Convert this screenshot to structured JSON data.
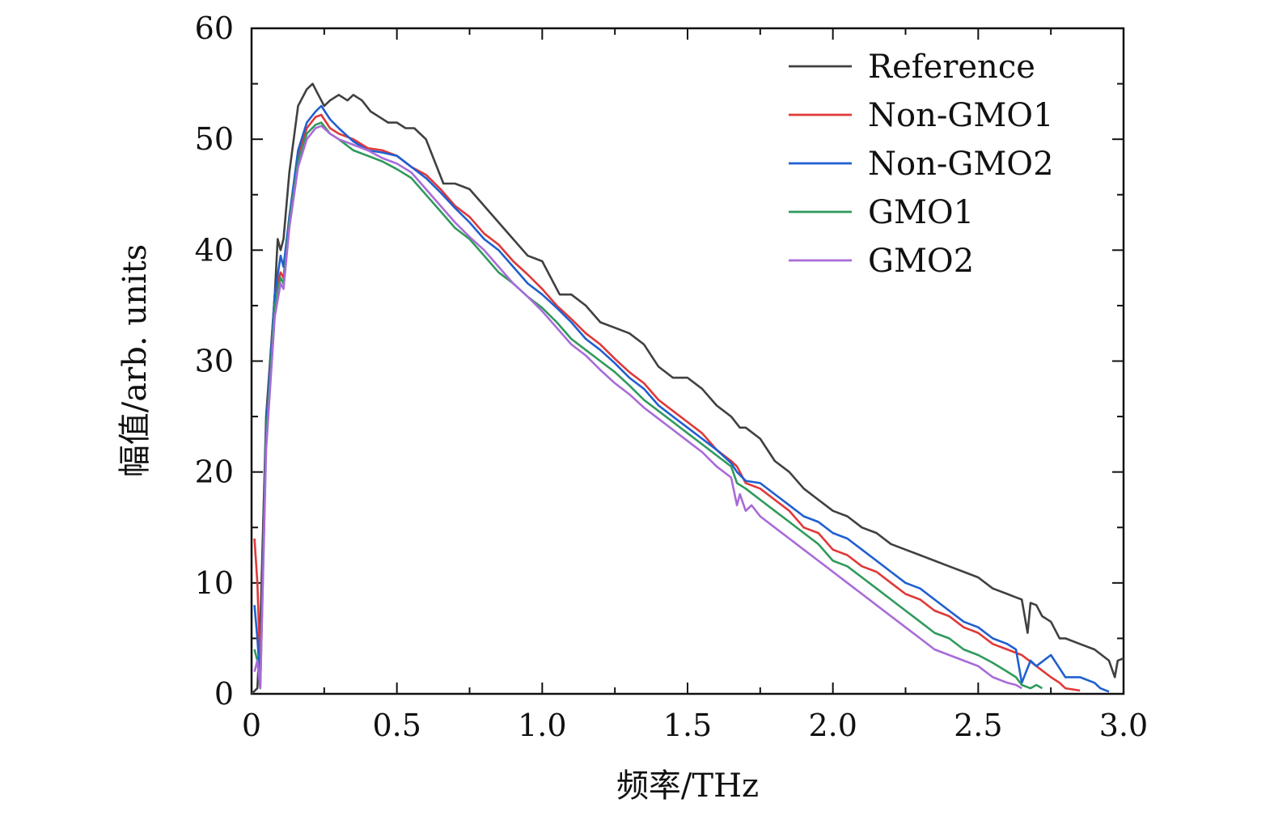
{
  "chart_data": {
    "type": "line",
    "title": "",
    "xlabel": "频率/THz",
    "ylabel": "幅值/arb. units",
    "xlim": [
      0,
      3.0
    ],
    "ylim": [
      0,
      60
    ],
    "xticks": [
      0,
      0.5,
      1.0,
      1.5,
      2.0,
      2.5,
      3.0
    ],
    "xtick_labels": [
      "0",
      "0.5",
      "1.0",
      "1.5",
      "2.0",
      "2.5",
      "3.0"
    ],
    "yticks": [
      0,
      10,
      20,
      30,
      40,
      50,
      60
    ],
    "ytick_labels": [
      "0",
      "10",
      "20",
      "30",
      "40",
      "50",
      "60"
    ],
    "grid": false,
    "legend_position": "top-right",
    "series": [
      {
        "name": "Reference",
        "color": "#404040",
        "x": [
          0.0,
          0.02,
          0.03,
          0.05,
          0.08,
          0.09,
          0.1,
          0.11,
          0.13,
          0.16,
          0.19,
          0.21,
          0.23,
          0.25,
          0.27,
          0.3,
          0.33,
          0.35,
          0.38,
          0.41,
          0.44,
          0.47,
          0.5,
          0.53,
          0.56,
          0.6,
          0.63,
          0.66,
          0.7,
          0.75,
          0.8,
          0.85,
          0.9,
          0.95,
          1.0,
          1.03,
          1.06,
          1.1,
          1.15,
          1.2,
          1.25,
          1.3,
          1.35,
          1.4,
          1.45,
          1.5,
          1.55,
          1.6,
          1.65,
          1.68,
          1.7,
          1.75,
          1.8,
          1.85,
          1.9,
          1.95,
          2.0,
          2.05,
          2.1,
          2.15,
          2.2,
          2.25,
          2.3,
          2.35,
          2.4,
          2.45,
          2.5,
          2.55,
          2.6,
          2.63,
          2.65,
          2.67,
          2.68,
          2.7,
          2.72,
          2.75,
          2.78,
          2.8,
          2.85,
          2.9,
          2.95,
          2.97,
          2.98,
          3.0
        ],
        "values": [
          0.0,
          0.5,
          6.0,
          25.0,
          36.0,
          41.0,
          40.0,
          41.0,
          47.0,
          53.0,
          54.5,
          55.0,
          54.0,
          53.0,
          53.5,
          54.0,
          53.5,
          54.0,
          53.5,
          52.5,
          52.0,
          51.5,
          51.5,
          51.0,
          51.0,
          50.0,
          48.0,
          46.0,
          46.0,
          45.5,
          44.0,
          42.5,
          41.0,
          39.5,
          39.0,
          37.5,
          36.0,
          36.0,
          35.0,
          33.5,
          33.0,
          32.5,
          31.5,
          29.5,
          28.5,
          28.5,
          27.5,
          26.0,
          25.0,
          24.0,
          24.0,
          23.0,
          21.0,
          20.0,
          18.5,
          17.5,
          16.5,
          16.0,
          15.0,
          14.5,
          13.5,
          13.0,
          12.5,
          12.0,
          11.5,
          11.0,
          10.5,
          9.5,
          9.0,
          8.7,
          8.5,
          5.5,
          8.2,
          8.0,
          7.0,
          6.5,
          5.0,
          5.0,
          4.5,
          4.0,
          3.0,
          1.5,
          3.0,
          3.2
        ]
      },
      {
        "name": "Non-GMO1",
        "color": "#e03838",
        "x": [
          0.01,
          0.02,
          0.03,
          0.05,
          0.08,
          0.1,
          0.11,
          0.13,
          0.16,
          0.19,
          0.22,
          0.24,
          0.27,
          0.3,
          0.35,
          0.4,
          0.45,
          0.5,
          0.55,
          0.6,
          0.65,
          0.7,
          0.75,
          0.8,
          0.85,
          0.9,
          0.95,
          1.0,
          1.05,
          1.1,
          1.15,
          1.2,
          1.25,
          1.3,
          1.35,
          1.4,
          1.45,
          1.5,
          1.55,
          1.6,
          1.65,
          1.67,
          1.7,
          1.75,
          1.8,
          1.85,
          1.9,
          1.95,
          2.0,
          2.05,
          2.1,
          2.15,
          2.2,
          2.25,
          2.3,
          2.35,
          2.4,
          2.45,
          2.5,
          2.55,
          2.6,
          2.65,
          2.7,
          2.75,
          2.78,
          2.8,
          2.85
        ],
        "values": [
          14.0,
          10.0,
          2.0,
          24.0,
          36.0,
          38.0,
          37.5,
          43.0,
          48.5,
          51.0,
          52.0,
          52.2,
          51.0,
          50.5,
          50.0,
          49.2,
          49.0,
          48.5,
          47.5,
          46.8,
          45.5,
          44.0,
          43.0,
          41.5,
          40.5,
          39.0,
          37.8,
          36.5,
          35.0,
          33.8,
          32.5,
          31.5,
          30.2,
          29.0,
          28.0,
          26.5,
          25.5,
          24.5,
          23.5,
          22.0,
          21.0,
          20.5,
          19.0,
          18.5,
          17.5,
          16.5,
          15.0,
          14.5,
          13.0,
          12.5,
          11.5,
          11.0,
          10.0,
          9.0,
          8.5,
          7.5,
          7.0,
          6.0,
          5.5,
          4.5,
          4.0,
          3.5,
          2.5,
          1.5,
          1.0,
          0.5,
          0.3
        ]
      },
      {
        "name": "Non-GMO2",
        "color": "#1f5fd0",
        "x": [
          0.01,
          0.02,
          0.03,
          0.05,
          0.08,
          0.1,
          0.11,
          0.13,
          0.16,
          0.19,
          0.22,
          0.24,
          0.27,
          0.3,
          0.35,
          0.4,
          0.45,
          0.5,
          0.55,
          0.6,
          0.65,
          0.7,
          0.75,
          0.8,
          0.85,
          0.9,
          0.95,
          1.0,
          1.05,
          1.1,
          1.15,
          1.2,
          1.25,
          1.3,
          1.35,
          1.4,
          1.45,
          1.5,
          1.55,
          1.6,
          1.65,
          1.67,
          1.7,
          1.75,
          1.8,
          1.85,
          1.9,
          1.95,
          2.0,
          2.05,
          2.1,
          2.15,
          2.2,
          2.25,
          2.3,
          2.35,
          2.4,
          2.45,
          2.5,
          2.55,
          2.6,
          2.63,
          2.65,
          2.68,
          2.7,
          2.75,
          2.8,
          2.85,
          2.9,
          2.92,
          2.95
        ],
        "values": [
          8.0,
          5.0,
          1.0,
          24.0,
          36.0,
          39.5,
          38.5,
          43.0,
          49.0,
          51.5,
          52.5,
          53.0,
          51.8,
          51.0,
          49.8,
          49.0,
          48.8,
          48.5,
          47.5,
          46.5,
          45.2,
          43.8,
          42.5,
          41.0,
          40.0,
          38.5,
          37.0,
          36.0,
          34.8,
          33.5,
          32.0,
          31.0,
          29.8,
          28.5,
          27.5,
          26.0,
          25.0,
          24.0,
          23.0,
          22.0,
          20.8,
          20.0,
          19.2,
          19.0,
          18.0,
          17.0,
          16.0,
          15.5,
          14.5,
          14.0,
          13.0,
          12.0,
          11.0,
          10.0,
          9.5,
          8.5,
          7.5,
          6.5,
          6.0,
          5.0,
          4.5,
          4.0,
          1.0,
          3.0,
          2.5,
          3.5,
          1.5,
          1.5,
          1.0,
          0.5,
          0.2
        ]
      },
      {
        "name": "GMO1",
        "color": "#2f9a5c",
        "x": [
          0.01,
          0.02,
          0.03,
          0.05,
          0.08,
          0.1,
          0.11,
          0.13,
          0.16,
          0.19,
          0.22,
          0.24,
          0.27,
          0.3,
          0.35,
          0.4,
          0.45,
          0.5,
          0.55,
          0.6,
          0.65,
          0.7,
          0.75,
          0.8,
          0.85,
          0.9,
          0.95,
          1.0,
          1.05,
          1.1,
          1.15,
          1.2,
          1.25,
          1.3,
          1.35,
          1.4,
          1.45,
          1.5,
          1.55,
          1.6,
          1.65,
          1.67,
          1.7,
          1.75,
          1.8,
          1.85,
          1.9,
          1.95,
          2.0,
          2.05,
          2.1,
          2.15,
          2.2,
          2.25,
          2.3,
          2.35,
          2.4,
          2.45,
          2.5,
          2.55,
          2.6,
          2.63,
          2.65,
          2.68,
          2.7,
          2.72
        ],
        "values": [
          4.0,
          3.0,
          0.5,
          23.0,
          35.0,
          37.5,
          37.0,
          42.5,
          48.0,
          50.5,
          51.3,
          51.5,
          50.5,
          50.0,
          49.0,
          48.5,
          48.0,
          47.3,
          46.5,
          45.0,
          43.5,
          42.0,
          41.0,
          39.5,
          38.0,
          37.0,
          35.8,
          34.8,
          33.5,
          32.0,
          31.0,
          30.0,
          29.0,
          27.8,
          26.5,
          25.5,
          24.5,
          23.5,
          22.5,
          21.5,
          20.5,
          19.0,
          18.5,
          17.5,
          16.5,
          15.5,
          14.5,
          13.5,
          12.0,
          11.5,
          10.5,
          9.5,
          8.5,
          7.5,
          6.5,
          5.5,
          5.0,
          4.0,
          3.5,
          2.8,
          2.0,
          1.5,
          0.8,
          0.5,
          0.8,
          0.5
        ]
      },
      {
        "name": "GMO2",
        "color": "#a86bd8",
        "x": [
          0.01,
          0.02,
          0.03,
          0.05,
          0.08,
          0.1,
          0.11,
          0.13,
          0.16,
          0.19,
          0.22,
          0.24,
          0.27,
          0.3,
          0.35,
          0.4,
          0.45,
          0.5,
          0.55,
          0.6,
          0.65,
          0.7,
          0.75,
          0.8,
          0.85,
          0.9,
          0.95,
          1.0,
          1.05,
          1.1,
          1.15,
          1.2,
          1.25,
          1.3,
          1.35,
          1.4,
          1.45,
          1.5,
          1.55,
          1.6,
          1.65,
          1.67,
          1.68,
          1.7,
          1.72,
          1.75,
          1.8,
          1.85,
          1.9,
          1.95,
          2.0,
          2.05,
          2.1,
          2.15,
          2.2,
          2.25,
          2.3,
          2.35,
          2.4,
          2.45,
          2.5,
          2.55,
          2.6,
          2.63,
          2.65
        ],
        "values": [
          2.0,
          3.0,
          0.5,
          22.0,
          34.0,
          37.0,
          36.5,
          42.0,
          47.5,
          50.0,
          51.0,
          51.2,
          50.5,
          50.0,
          49.5,
          49.0,
          48.3,
          47.8,
          47.0,
          45.5,
          44.0,
          42.5,
          41.2,
          40.0,
          38.5,
          37.0,
          35.8,
          34.5,
          33.0,
          31.5,
          30.5,
          29.2,
          28.0,
          27.0,
          25.8,
          24.8,
          23.8,
          22.8,
          21.8,
          20.5,
          19.5,
          17.0,
          18.0,
          16.5,
          17.0,
          16.0,
          15.0,
          14.0,
          13.0,
          12.0,
          11.0,
          10.0,
          9.0,
          8.0,
          7.0,
          6.0,
          5.0,
          4.0,
          3.5,
          3.0,
          2.5,
          1.5,
          1.0,
          0.8,
          0.5
        ]
      }
    ]
  }
}
